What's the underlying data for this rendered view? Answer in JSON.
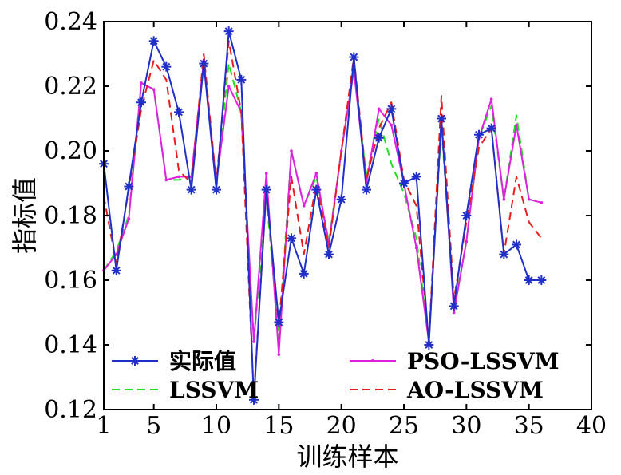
{
  "chart_data": {
    "type": "line",
    "title": "",
    "xlabel": "训练样本",
    "ylabel": "指标值",
    "xlim": [
      1,
      40
    ],
    "ylim": [
      0.12,
      0.24
    ],
    "xticks": [
      1,
      5,
      10,
      15,
      20,
      25,
      30,
      35,
      40
    ],
    "yticks": [
      0.12,
      0.14,
      0.16,
      0.18,
      0.2,
      0.22,
      0.24
    ],
    "ytick_labels": [
      "0.12",
      "0.14",
      "0.16",
      "0.18",
      "0.20",
      "0.22",
      "0.24"
    ],
    "grid": false,
    "legend_position": "bottom",
    "x": [
      1,
      2,
      3,
      4,
      5,
      6,
      7,
      8,
      9,
      10,
      11,
      12,
      13,
      14,
      15,
      16,
      17,
      18,
      19,
      20,
      21,
      22,
      23,
      24,
      25,
      26,
      27,
      28,
      29,
      30,
      31,
      32,
      33,
      34,
      35,
      36
    ],
    "series": [
      {
        "name": "实际值",
        "color": "#1f2fc8",
        "style": "solid-star",
        "values": [
          0.196,
          0.163,
          0.189,
          0.215,
          0.234,
          0.226,
          0.212,
          0.188,
          0.227,
          0.188,
          0.237,
          0.222,
          0.123,
          0.188,
          0.147,
          0.173,
          0.162,
          0.188,
          0.168,
          0.185,
          0.229,
          0.188,
          0.204,
          0.213,
          0.19,
          0.192,
          0.14,
          0.21,
          0.152,
          0.18,
          0.205,
          0.207,
          0.168,
          0.171,
          0.16,
          0.16
        ]
      },
      {
        "name": "LSSVM",
        "color": "#22e022",
        "style": "dashed",
        "values": [
          0.163,
          0.169,
          0.18,
          0.221,
          0.219,
          0.191,
          0.191,
          0.192,
          0.228,
          0.19,
          0.227,
          0.212,
          0.141,
          0.186,
          0.142,
          0.2,
          0.183,
          0.192,
          0.172,
          0.2,
          0.225,
          0.192,
          0.21,
          0.196,
          0.187,
          0.173,
          0.141,
          0.208,
          0.151,
          0.172,
          0.204,
          0.214,
          0.185,
          0.211,
          0.185,
          0.184
        ]
      },
      {
        "name": "PSO-LSSVM",
        "color": "#e020e0",
        "style": "solid-dot",
        "values": [
          0.163,
          0.168,
          0.179,
          0.221,
          0.219,
          0.191,
          0.192,
          0.192,
          0.228,
          0.19,
          0.22,
          0.212,
          0.141,
          0.193,
          0.137,
          0.2,
          0.183,
          0.193,
          0.171,
          0.2,
          0.225,
          0.19,
          0.213,
          0.208,
          0.19,
          0.17,
          0.141,
          0.21,
          0.15,
          0.172,
          0.204,
          0.216,
          0.185,
          0.208,
          0.185,
          0.184
        ]
      },
      {
        "name": "AO-LSSVM",
        "color": "#e81c1c",
        "style": "dashed",
        "values": [
          0.186,
          0.165,
          0.188,
          0.213,
          0.228,
          0.222,
          0.194,
          0.19,
          0.23,
          0.19,
          0.234,
          0.212,
          0.124,
          0.188,
          0.146,
          0.192,
          0.168,
          0.19,
          0.17,
          0.2,
          0.229,
          0.191,
          0.207,
          0.215,
          0.191,
          0.183,
          0.141,
          0.217,
          0.154,
          0.178,
          0.201,
          0.207,
          0.168,
          0.192,
          0.178,
          0.173
        ]
      }
    ]
  }
}
